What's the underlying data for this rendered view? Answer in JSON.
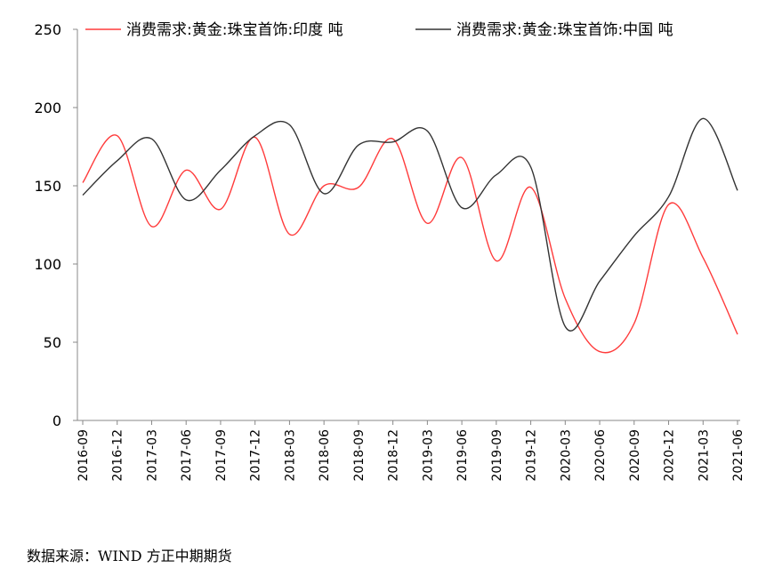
{
  "chart_data": {
    "type": "line",
    "title": "",
    "xlabel": "",
    "ylabel": "",
    "ylim": [
      0,
      250
    ],
    "yticks": [
      0,
      50,
      100,
      150,
      200,
      250
    ],
    "categories": [
      "2016-09",
      "2016-12",
      "2017-03",
      "2017-06",
      "2017-09",
      "2017-12",
      "2018-03",
      "2018-06",
      "2018-09",
      "2018-12",
      "2019-03",
      "2019-06",
      "2019-09",
      "2019-12",
      "2020-03",
      "2020-06",
      "2020-09",
      "2020-12",
      "2021-03",
      "2021-06"
    ],
    "series": [
      {
        "name": "消费需求:黄金:珠宝首饰:印度  吨",
        "color": "#ff3b3b",
        "values": [
          152,
          182,
          124,
          160,
          135,
          181,
          119,
          150,
          149,
          180,
          126,
          168,
          102,
          149,
          78,
          44,
          62,
          138,
          104,
          55
        ]
      },
      {
        "name": "消费需求:黄金:珠宝首饰:中国  吨",
        "color": "#333333",
        "values": [
          144,
          166,
          180,
          141,
          160,
          182,
          189,
          145,
          176,
          178,
          185,
          136,
          157,
          162,
          60,
          89,
          118,
          143,
          193,
          147
        ]
      }
    ],
    "grid": false,
    "legend_position": "top"
  },
  "source_note": "数据来源：WIND  方正中期期货"
}
